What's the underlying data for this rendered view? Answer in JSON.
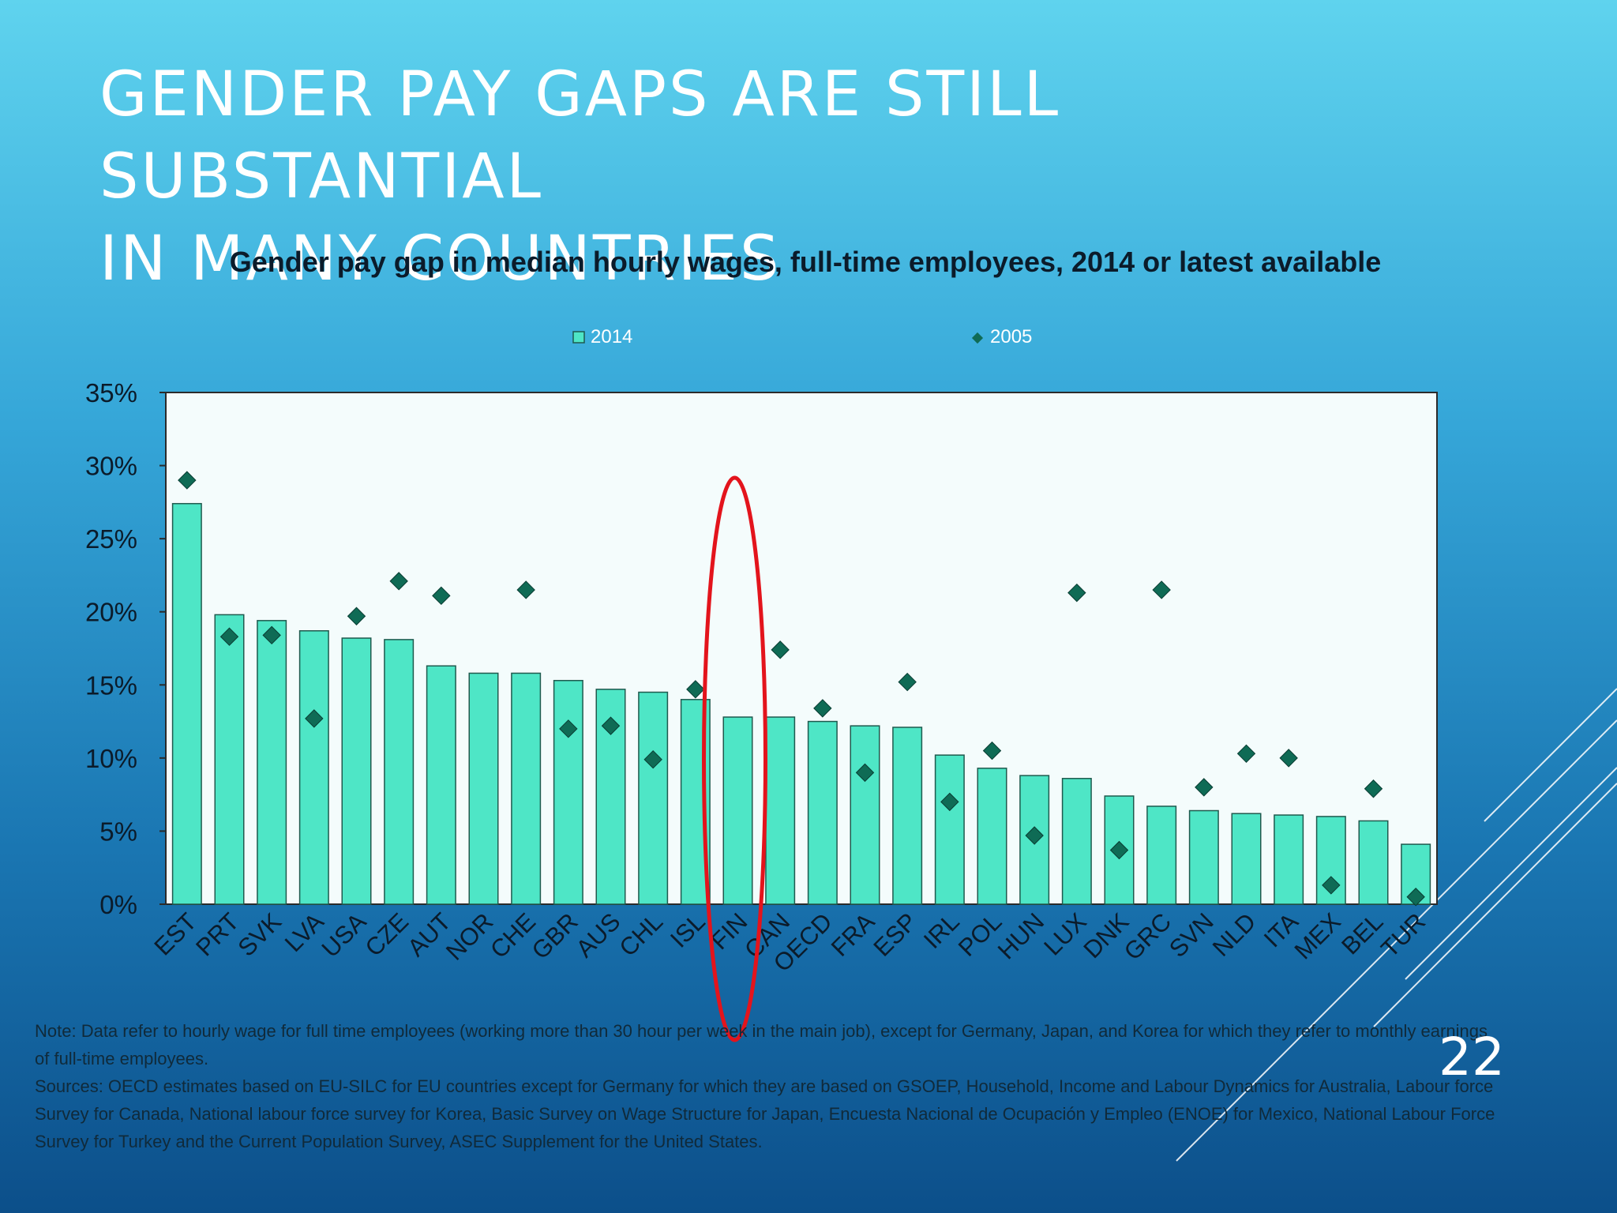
{
  "slide": {
    "title_line1": "GENDER PAY GAPS ARE STILL SUBSTANTIAL",
    "title_line2": "IN MANY COUNTRIES",
    "page_number": "22",
    "note": "Note: Data refer to hourly wage for full time employees (working more than 30 hour per week in the main job), except for Germany, Japan, and Korea for which they refer to monthly earnings of full-time employees.",
    "sources": "Sources: OECD estimates based on EU-SILC for EU countries except for Germany for which they are based on GSOEP, Household, Income and Labour Dynamics for Australia, Labour force Survey for Canada, National labour force survey for Korea, Basic Survey on Wage Structure for Japan, Encuesta Nacional de Ocupación y Empleo (ENOE) for Mexico, National Labour Force Survey for Turkey and the Current Population Survey, ASEC Supplement for the United States."
  },
  "colors": {
    "bar_fill": "#4ee6c6",
    "bar_stroke": "#1f5a4e",
    "marker_fill": "#0f6b55",
    "highlight_ellipse": "#e3141c",
    "plot_background": "#f4fcfc"
  },
  "chart_data": {
    "type": "bar",
    "title": "Gender pay gap in median hourly wages, full-time employees, 2014 or latest available",
    "categories": [
      "EST",
      "PRT",
      "SVK",
      "LVA",
      "USA",
      "CZE",
      "AUT",
      "NOR",
      "CHE",
      "GBR",
      "AUS",
      "CHL",
      "ISL",
      "FIN",
      "CAN",
      "OECD",
      "FRA",
      "ESP",
      "IRL",
      "POL",
      "HUN",
      "LUX",
      "DNK",
      "GRC",
      "SVN",
      "NLD",
      "ITA",
      "MEX",
      "BEL",
      "TUR"
    ],
    "series": [
      {
        "name": "2014",
        "kind": "bar",
        "values": [
          27.4,
          19.8,
          19.4,
          18.7,
          18.2,
          18.1,
          16.3,
          15.8,
          15.8,
          15.3,
          14.7,
          14.5,
          14.0,
          12.8,
          12.8,
          12.5,
          12.2,
          12.1,
          10.2,
          9.3,
          8.8,
          8.6,
          7.4,
          6.7,
          6.4,
          6.2,
          6.1,
          6.0,
          5.7,
          4.1
        ]
      },
      {
        "name": "2005",
        "kind": "marker",
        "values": [
          29.0,
          18.3,
          18.4,
          12.7,
          19.7,
          22.1,
          21.1,
          null,
          21.5,
          12.0,
          12.2,
          9.9,
          14.7,
          null,
          17.4,
          13.4,
          9.0,
          15.2,
          7.0,
          10.5,
          4.7,
          21.3,
          3.7,
          21.5,
          8.0,
          10.3,
          10.0,
          1.3,
          7.9,
          0.5
        ]
      }
    ],
    "ylim": [
      0,
      35
    ],
    "yticks": [
      0,
      5,
      10,
      15,
      20,
      25,
      30,
      35
    ],
    "ytick_labels": [
      "0%",
      "5%",
      "10%",
      "15%",
      "20%",
      "25%",
      "30%",
      "35%"
    ],
    "legend_position": "top",
    "grid": false,
    "highlight": "FIN"
  }
}
